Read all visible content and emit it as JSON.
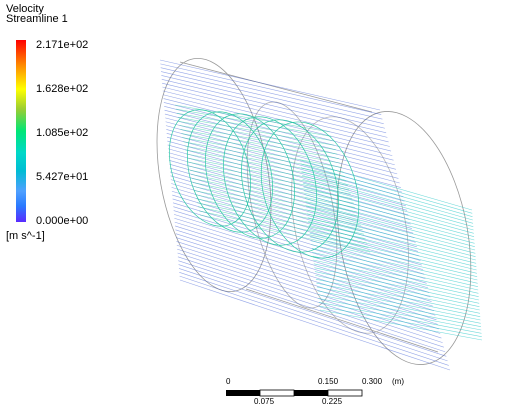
{
  "legend": {
    "title": "Velocity",
    "subtitle": "Streamline 1",
    "ticks": [
      "2.171e+02",
      "1.628e+02",
      "1.085e+02",
      "5.427e+01",
      "0.000e+00"
    ],
    "units": "[m s^-1]",
    "gradient_colors": [
      "#ff0000",
      "#ffff00",
      "#00e676",
      "#00bcd4",
      "#5a2bff"
    ]
  },
  "scale_bar": {
    "top_labels": [
      "0",
      "0.150",
      "0.300"
    ],
    "unit_label": "(m)",
    "bottom_labels": [
      "0.075",
      "0.225"
    ]
  },
  "colors": {
    "outline": "#8a8a8a",
    "stream_blue": "#3f5fd6",
    "stream_cyan": "#27c6c6",
    "stream_green": "#16c79a"
  }
}
